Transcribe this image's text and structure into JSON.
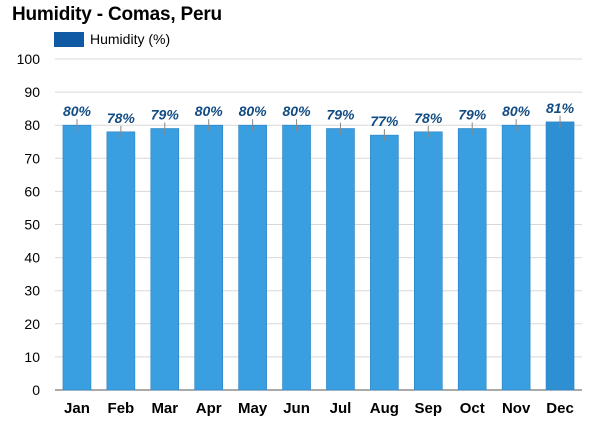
{
  "title": "Humidity - Comas, Peru",
  "legend": {
    "label": "Humidity (%)",
    "color": "#0f5aa3"
  },
  "colors": {
    "bar": "#3a9fe0",
    "bar_highlight": "#2f8fd3",
    "grid": "#d8d8d8",
    "label": "#124c83"
  },
  "chart_data": {
    "type": "bar",
    "title": "Humidity - Comas, Peru",
    "xlabel": "",
    "ylabel": "",
    "categories": [
      "Jan",
      "Feb",
      "Mar",
      "Apr",
      "May",
      "Jun",
      "Jul",
      "Aug",
      "Sep",
      "Oct",
      "Nov",
      "Dec"
    ],
    "series": [
      {
        "name": "Humidity (%)",
        "values": [
          80,
          78,
          79,
          80,
          80,
          80,
          79,
          77,
          78,
          79,
          80,
          81
        ]
      }
    ],
    "data_labels": [
      "80%",
      "78%",
      "79%",
      "80%",
      "80%",
      "80%",
      "79%",
      "77%",
      "78%",
      "79%",
      "80%",
      "81%"
    ],
    "ylim": [
      0,
      100
    ],
    "yticks": [
      0,
      10,
      20,
      30,
      40,
      50,
      60,
      70,
      80,
      90,
      100
    ],
    "grid": true,
    "legend_position": "top-left"
  }
}
